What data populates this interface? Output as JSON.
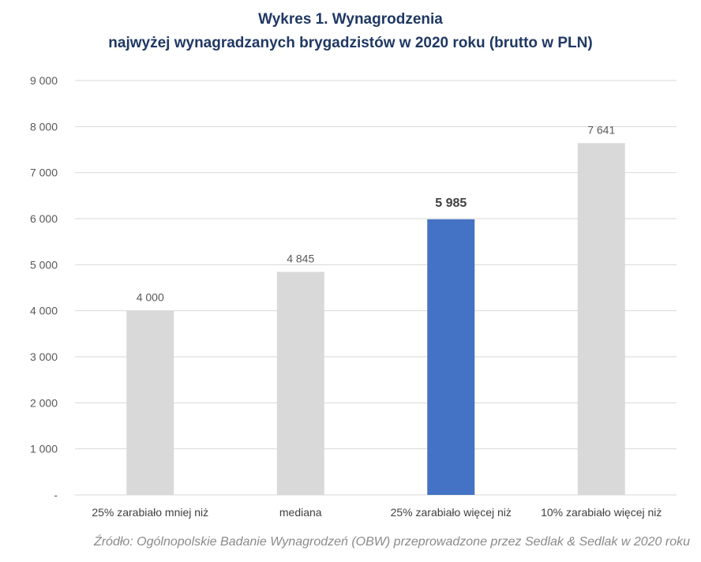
{
  "chart_data": {
    "type": "bar",
    "title_line1": "Wykres 1. Wynagrodzenia",
    "title_line2": "najwyżej wynagradzanych brygadzistów w 2020 roku (brutto w PLN)",
    "xlabel": "",
    "ylabel": "",
    "categories": [
      "25% zarabiało mniej niż",
      "mediana",
      "25% zarabiało więcej niż",
      "10% zarabiało więcej niż"
    ],
    "values": [
      4000,
      4845,
      5985,
      7641
    ],
    "value_labels": [
      "4 000",
      "4 845",
      "5 985",
      "7 641"
    ],
    "ylim": [
      0,
      9000
    ],
    "yticks": [
      0,
      1000,
      2000,
      3000,
      4000,
      5000,
      6000,
      7000,
      8000,
      9000
    ],
    "ytick_labels": [
      "-",
      "1 000",
      "2 000",
      "3 000",
      "4 000",
      "5 000",
      "6 000",
      "7 000",
      "8 000",
      "9 000"
    ],
    "grid": true,
    "legend": "none",
    "highlight_index": 2,
    "colors": {
      "bar": "#d9d9d9",
      "highlight": "#4472c4",
      "grid": "#d9d9d9",
      "tick_text": "#595959",
      "title": "#1f3864",
      "source_text": "#8a8a8a"
    }
  },
  "source_text": "Źródło: Ogólnopolskie Badanie Wynagrodzeń (OBW) przeprowadzone przez Sedlak & Sedlak w 2020 roku"
}
